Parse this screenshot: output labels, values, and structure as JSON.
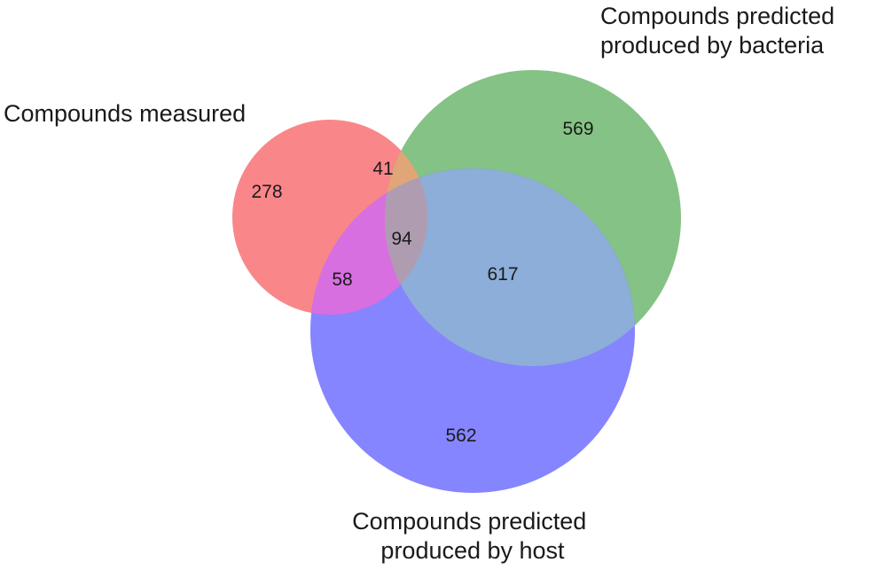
{
  "venn": {
    "sets": [
      {
        "label_lines": [
          "Compounds measured"
        ],
        "color": "#f8696b"
      },
      {
        "label_lines": [
          "Compounds predicted",
          "produced by bacteria"
        ],
        "color": "#66b366"
      },
      {
        "label_lines": [
          "Compounds predicted",
          "produced by host"
        ],
        "color": "#6666ff"
      }
    ],
    "regions": {
      "measured_only": "278",
      "bacteria_only": "569",
      "host_only": "562",
      "measured_bacteria": "41",
      "measured_host": "58",
      "bacteria_host": "617",
      "all_three": "94"
    }
  }
}
